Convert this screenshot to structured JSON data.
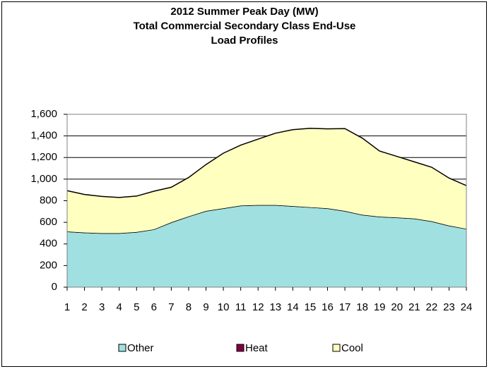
{
  "chart_data": {
    "type": "stacked_area",
    "title": [
      "2012 Summer Peak Day (MW)",
      "Total Commercial Secondary Class End-Use",
      "Load Profiles"
    ],
    "categories": [
      "1",
      "2",
      "3",
      "4",
      "5",
      "6",
      "7",
      "8",
      "9",
      "10",
      "11",
      "12",
      "13",
      "14",
      "15",
      "16",
      "17",
      "18",
      "19",
      "20",
      "21",
      "22",
      "23",
      "24"
    ],
    "series": [
      {
        "name": "Other",
        "color": "#a0e0e0",
        "values": [
          515,
          505,
          500,
          500,
          510,
          535,
          600,
          655,
          705,
          730,
          755,
          760,
          760,
          750,
          740,
          730,
          705,
          670,
          652,
          645,
          635,
          610,
          570,
          540
        ]
      },
      {
        "name": "Heat",
        "color": "#800040",
        "values": [
          0,
          0,
          0,
          0,
          0,
          0,
          0,
          0,
          0,
          0,
          0,
          0,
          0,
          0,
          0,
          0,
          0,
          0,
          0,
          0,
          0,
          0,
          0,
          0
        ]
      },
      {
        "name": "Cool",
        "color": "#ffffc0",
        "values": [
          378,
          353,
          340,
          330,
          333,
          353,
          325,
          360,
          430,
          510,
          560,
          610,
          665,
          708,
          730,
          735,
          763,
          710,
          608,
          565,
          525,
          500,
          440,
          400
        ]
      }
    ],
    "ylim": [
      0,
      1600
    ],
    "yticks": [
      0,
      200,
      400,
      600,
      800,
      {
        "value": 1000,
        "label": "1,000"
      },
      {
        "value": 1200,
        "label": "1,200"
      },
      {
        "value": 1400,
        "label": "1,400"
      },
      {
        "value": 1600,
        "label": "1,600"
      }
    ],
    "grid": true,
    "legend": "bottom"
  }
}
